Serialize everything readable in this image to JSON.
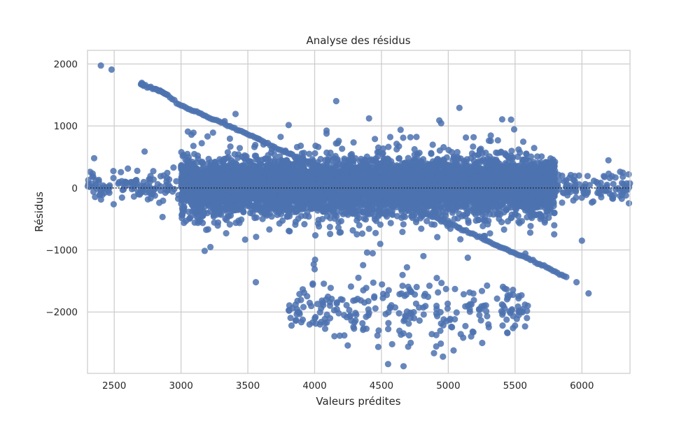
{
  "chart_data": {
    "type": "scatter",
    "title": "Analyse des résidus",
    "xlabel": "Valeurs prédites",
    "ylabel": "Résidus",
    "xlim": [
      2300,
      6360
    ],
    "ylim": [
      -2990,
      2220
    ],
    "xticks": [
      2500,
      3000,
      3500,
      4000,
      4500,
      5000,
      5500,
      6000
    ],
    "yticks": [
      -2000,
      -1000,
      0,
      1000,
      2000
    ],
    "xtick_labels": [
      "2500",
      "3000",
      "3500",
      "4000",
      "4500",
      "5000",
      "5500",
      "6000"
    ],
    "ytick_labels": [
      "−2000",
      "−1000",
      "0",
      "1000",
      "2000"
    ],
    "grid": true,
    "reference_line": {
      "y": 0,
      "style": "dotted",
      "color": "#262626"
    },
    "colors": {
      "points": "#4c72b0",
      "grid": "#cccccc",
      "spine": "#cccccc",
      "text": "#262626"
    },
    "series": [
      {
        "kind": "main_cloud",
        "x_range": [
          2300,
          6360
        ],
        "y_center": 30,
        "y_spread_core": 450,
        "approx_points": 6500
      },
      {
        "kind": "diagonal_band",
        "points": [
          [
            2700,
            1680
          ],
          [
            2720,
            1660
          ],
          [
            2800,
            1600
          ],
          [
            2850,
            1550
          ],
          [
            2900,
            1500
          ],
          [
            3000,
            1320
          ],
          [
            3100,
            1250
          ],
          [
            3200,
            1150
          ],
          [
            3300,
            1060
          ],
          [
            3400,
            960
          ],
          [
            3500,
            870
          ],
          [
            3600,
            760
          ],
          [
            3700,
            660
          ],
          [
            3800,
            560
          ],
          [
            3900,
            460
          ],
          [
            4000,
            380
          ],
          [
            4100,
            290
          ],
          [
            4200,
            200
          ],
          [
            4300,
            110
          ],
          [
            4400,
            30
          ],
          [
            4500,
            -60
          ],
          [
            4600,
            -170
          ],
          [
            4700,
            -290
          ],
          [
            4800,
            -380
          ],
          [
            4900,
            -470
          ],
          [
            5000,
            -570
          ],
          [
            5100,
            -660
          ],
          [
            5200,
            -760
          ],
          [
            5300,
            -860
          ],
          [
            5400,
            -960
          ],
          [
            5500,
            -1060
          ],
          [
            5600,
            -1140
          ],
          [
            5700,
            -1240
          ],
          [
            5800,
            -1350
          ],
          [
            5900,
            -1460
          ]
        ]
      },
      {
        "kind": "lower_cluster",
        "x_range": [
          3800,
          5600
        ],
        "y_center": -1950,
        "y_spread": 350,
        "approx_points": 260
      },
      {
        "kind": "outliers",
        "points": [
          [
            2400,
            1975
          ],
          [
            2480,
            1910
          ],
          [
            5960,
            -1520
          ],
          [
            6050,
            -1700
          ],
          [
            6000,
            -850
          ],
          [
            4960,
            -2720
          ],
          [
            5040,
            -2620
          ],
          [
            4700,
            -2560
          ],
          [
            4580,
            -2520
          ],
          [
            3560,
            -1520
          ],
          [
            4000,
            -1310
          ],
          [
            4470,
            -2380
          ],
          [
            5300,
            -2200
          ],
          [
            5500,
            -2220
          ],
          [
            2350,
            480
          ],
          [
            2320,
            260
          ],
          [
            6330,
            -120
          ],
          [
            6300,
            80
          ],
          [
            6200,
            230
          ],
          [
            6350,
            220
          ]
        ]
      }
    ]
  }
}
